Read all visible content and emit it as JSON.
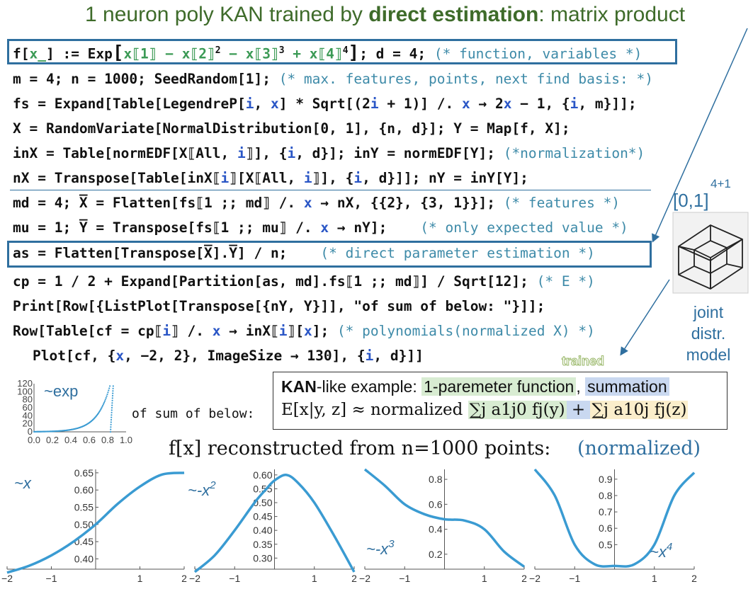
{
  "title": {
    "prefix": "1 neuron poly KAN trained by ",
    "bold": "direct estimation",
    "suffix": ": matrix product"
  },
  "code": {
    "l1": {
      "a": "f[",
      "b": "x_",
      "c": "] := Exp",
      "d": "x⟦1⟧ − x⟦2⟧",
      "e": "2",
      "f": " − x⟦3⟧",
      "g": "3",
      "h": " + x⟦4⟧",
      "i": "4",
      "j": "; d = 4;",
      "k": "(* function, variables *)"
    },
    "l2": {
      "code": "m = 4; n = 1000; SeedRandom[1];",
      "comment": "(* max. features, points, next find basis: *)"
    },
    "l3": {
      "a": "fs = Expand[Table[LegendreP[",
      "b": "i",
      "c": ", ",
      "d": "x",
      "e": "] * Sqrt[(2",
      "f": "i",
      "g": " + 1)] /. ",
      "h": "x",
      "i": " → 2",
      "j": "x",
      "k": " − 1, {",
      "l": "i",
      "m": ", m}]];"
    },
    "l4": {
      "code": "X = RandomVariate[NormalDistribution[0, 1], {n, d}]; Y = Map[f, X];"
    },
    "l5": {
      "a": "inX = Table[normEDF[X⟦All, ",
      "b": "i",
      "c": "⟧], {",
      "d": "i",
      "e": ", d}]; inY = normEDF[Y];",
      "comment": "(*normalization*)"
    },
    "l6": {
      "a": "nX = Transpose[Table[inX⟦",
      "b": "i",
      "c": "⟧[X⟦All, ",
      "d": "i",
      "e": "⟧], {",
      "f": "i",
      "g": ", d}]]; nY = inY[Y];"
    },
    "l7": {
      "a": "md = 4; X̅ = Flatten[fs⟦1 ;; md⟧ /. ",
      "b": "x",
      "c": " → nX, {{2}, {3, 1}}];",
      "comment": "(* features *)"
    },
    "l8": {
      "a": "mu = 1; Y̅ = Transpose[fs⟦1 ;; mu⟧ /. ",
      "b": "x",
      "c": " → nY];",
      "comment": "(* only expected value *)"
    },
    "l9": {
      "code": "as = Flatten[Transpose[X̅].Y̅] / n;",
      "comment": "(* direct  parameter estimation *)"
    },
    "l10": {
      "a": "cp = 1 / 2 + Expand[Partition[as, md].fs⟦1 ;; md⟧] / Sqrt[12];",
      "comment": "(* E *)"
    },
    "l11": {
      "code": "Print[Row[{ListPlot[Transpose[{nY, Y}]], \"of sum of below: \"}]];"
    },
    "l12": {
      "a": "Row[Table[cf = cp⟦",
      "b": "i",
      "c": "⟧ /. ",
      "d": "x",
      "e": " → inX⟦",
      "f": "i",
      "g": "⟧[",
      "h": "x",
      "i": "];",
      "comment": "(* polynomials(normalized X) *)"
    },
    "l13": {
      "a": "Plot[cf, {",
      "b": "x",
      "c": ", −2, 2}, ImageSize → 130], {",
      "d": "i",
      "e": ", d}]]"
    }
  },
  "side": {
    "sup": "4+1",
    "interval": "[0,1]",
    "line1": "joint",
    "line2": "distr.",
    "line3": "model"
  },
  "trained": "trained",
  "kan": {
    "bold": "KAN",
    "rest": "-like example: ",
    "green": "1-paremeter function",
    "comma": ", ",
    "blue": "summation"
  },
  "of_sum": "of sum of below:",
  "formula": {
    "lhs": "E[x|y, z] ≈ normalized ",
    "t1": "∑j a1j0 fj(y)",
    "plus": " + ",
    "t2": "∑j a10j fj(z)"
  },
  "recon": {
    "text": "f[x] reconstructed from n=1000 points:",
    "norm": "(normalized)"
  },
  "scatter": {
    "label": "~exp",
    "yticks": [
      "120",
      "100",
      "80",
      "60",
      "40",
      "20",
      "0"
    ],
    "xticks": [
      "0.0",
      "0.2",
      "0.4",
      "0.6",
      "0.8",
      "1.0"
    ]
  },
  "colors": {
    "accent": "#2f6f9f",
    "curve": "#3a9bd2",
    "title_green": "#3e6b2a",
    "green_bg": "#d8ecd2",
    "blue_bg": "#c9d8f0",
    "yellow_bg": "#fbeecb"
  },
  "chart_data": [
    {
      "type": "line",
      "label": "~x",
      "x": [
        -2,
        -1.5,
        -1,
        -0.5,
        0,
        0.5,
        1,
        1.5,
        2
      ],
      "y": [
        0.36,
        0.38,
        0.41,
        0.45,
        0.5,
        0.56,
        0.61,
        0.645,
        0.65
      ],
      "yticks": [
        "0.65",
        "0.60",
        "0.55",
        "0.50",
        "0.45",
        "0.40"
      ],
      "xticks": [
        "-2",
        "-1",
        "1",
        "2"
      ]
    },
    {
      "type": "line",
      "label": "~-x",
      "label_sup": "2",
      "x": [
        -2,
        -1.5,
        -1,
        -0.5,
        -0.2,
        0,
        0.3,
        0.6,
        1,
        1.5,
        2
      ],
      "y": [
        0.25,
        0.31,
        0.4,
        0.5,
        0.55,
        0.58,
        0.6,
        0.57,
        0.5,
        0.38,
        0.25
      ],
      "yticks": [
        "0.60",
        "0.55",
        "0.50",
        "0.45",
        "0.40",
        "0.35",
        "0.30"
      ],
      "xticks": [
        "-2",
        "-1",
        "1",
        "2"
      ]
    },
    {
      "type": "line",
      "label": "~-x",
      "label_sup": "3",
      "x": [
        -2,
        -1.5,
        -1,
        -0.5,
        0,
        0.5,
        1,
        1.5,
        2
      ],
      "y": [
        0.88,
        0.75,
        0.6,
        0.52,
        0.48,
        0.47,
        0.4,
        0.22,
        0.1
      ],
      "yticks": [
        "0.8",
        "0.6",
        "0.4",
        "0.2"
      ],
      "xticks": [
        "-2",
        "-1",
        "1",
        "2"
      ]
    },
    {
      "type": "line",
      "label": "~x",
      "label_sup": "4",
      "x": [
        -2,
        -1.5,
        -1,
        -0.5,
        0,
        0.5,
        1,
        1.5,
        2
      ],
      "y": [
        0.96,
        0.8,
        0.5,
        0.38,
        0.37,
        0.38,
        0.5,
        0.8,
        0.94
      ],
      "yticks": [
        "0.9",
        "0.8",
        "0.7",
        "0.6",
        "0.5"
      ],
      "xticks": [
        "-2",
        "-1",
        "1",
        "2"
      ]
    }
  ]
}
